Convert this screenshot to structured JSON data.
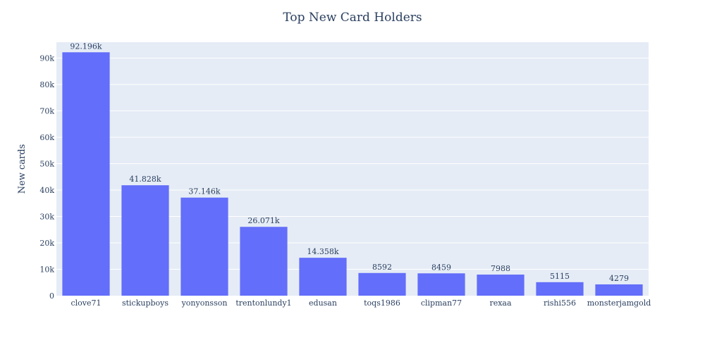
{
  "chart_data": {
    "type": "bar",
    "title": "Top New Card Holders",
    "xlabel": "",
    "ylabel": "New cards",
    "categories": [
      "clove71",
      "stickupboys",
      "yonyonsson",
      "trentonlundy1",
      "edusan",
      "toqs1986",
      "clipman77",
      "rexaa",
      "rishi556",
      "monsterjamgold"
    ],
    "values": [
      92196,
      41828,
      37146,
      26071,
      14358,
      8592,
      8459,
      7988,
      5115,
      4279
    ],
    "data_labels": [
      "92.196k",
      "41.828k",
      "37.146k",
      "26.071k",
      "14.358k",
      "8592",
      "8459",
      "7988",
      "5115",
      "4279"
    ],
    "ylim": [
      0,
      96000
    ],
    "yticks": [
      0,
      10000,
      20000,
      30000,
      40000,
      50000,
      60000,
      70000,
      80000,
      90000
    ],
    "ytick_labels": [
      "0",
      "10k",
      "20k",
      "30k",
      "40k",
      "50k",
      "60k",
      "70k",
      "80k",
      "90k"
    ],
    "grid": true,
    "legend": "none",
    "colors": {
      "bar": "#636efa",
      "plot_bg": "#e5ecf6",
      "paper_bg": "#ffffff",
      "grid": "#ffffff",
      "text": "#2a3f5f"
    }
  }
}
